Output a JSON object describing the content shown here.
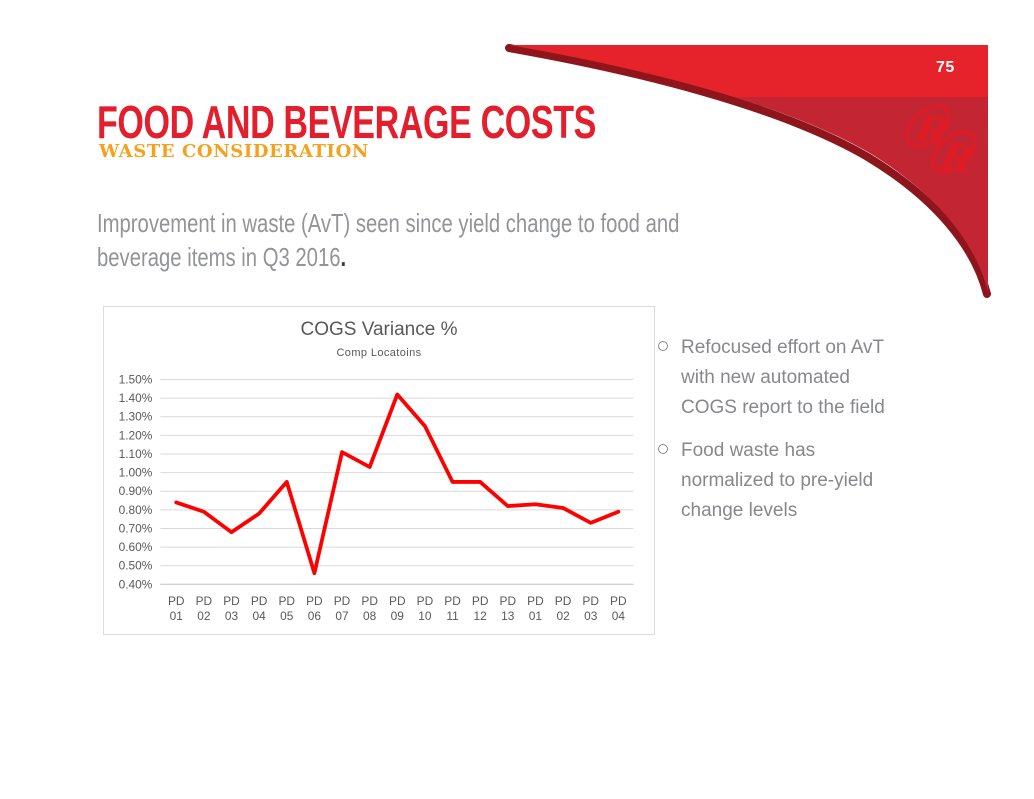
{
  "page": {
    "number": "75"
  },
  "header": {
    "title": "FOOD AND BEVERAGE COSTS",
    "subtitle": "WASTE CONSIDERATION"
  },
  "intro": {
    "text": "Improvement in waste (AvT) seen since yield change to food and beverage items in Q3 2016",
    "period": "."
  },
  "logo": {
    "name": "red-robin-rr-logo",
    "letters": "RR"
  },
  "bullets": {
    "items": [
      {
        "text": "Refocused effort on AvT with new automated COGS report to the field"
      },
      {
        "text": "Food waste has normalized to pre-yield change levels"
      }
    ]
  },
  "chart_data": {
    "type": "line",
    "title": "COGS Variance %",
    "subtitle": "Comp Locatoins",
    "categories": [
      "PD 01",
      "PD 02",
      "PD 03",
      "PD 04",
      "PD 05",
      "PD 06",
      "PD 07",
      "PD 08",
      "PD 09",
      "PD 10",
      "PD 11",
      "PD 12",
      "PD 13",
      "PD 01",
      "PD 02",
      "PD 03",
      "PD 04"
    ],
    "values": [
      0.84,
      0.79,
      0.68,
      0.78,
      0.95,
      0.46,
      1.11,
      1.03,
      1.42,
      1.25,
      0.95,
      0.95,
      0.82,
      0.83,
      0.81,
      0.73,
      0.79
    ],
    "ylabel_format": "percent",
    "ylim": [
      0.4,
      1.5
    ],
    "ytick_step": 0.1,
    "grid": true,
    "legend": "none",
    "line_color": "#FF0000",
    "grid_color": "#d9d9d9",
    "axis_color": "#bfbfbf",
    "text_color": "#595959"
  },
  "colors": {
    "accent_red": "#E31E2D",
    "band_red": "#E6232B",
    "dark_red": "#C42532",
    "shadow_red": "#8E151C",
    "accent_orange": "#F6A01B",
    "body_gray": "#929497"
  }
}
